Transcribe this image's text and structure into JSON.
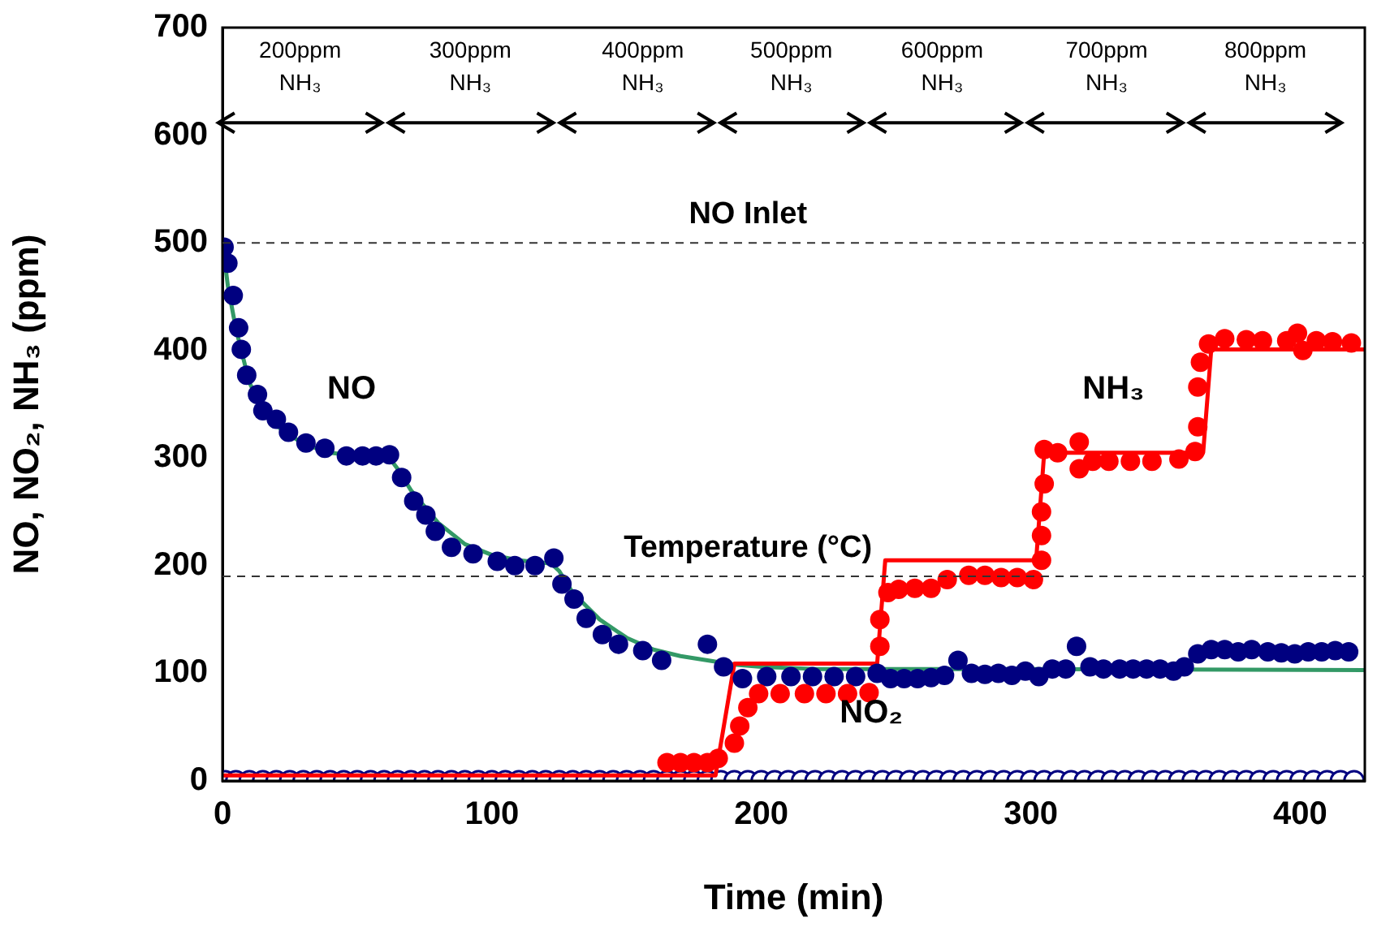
{
  "chart_data": {
    "type": "scatter",
    "xlabel": "Time (min)",
    "ylabel": "NO, NO₂, NH₃ (ppm)",
    "xlim": [
      0,
      424
    ],
    "xticks": [
      0,
      100,
      200,
      300,
      400
    ],
    "ylim": [
      0,
      700
    ],
    "yticks": [
      0,
      100,
      200,
      300,
      400,
      500,
      600,
      700
    ],
    "grid": false,
    "legend": false,
    "series": [
      {
        "type": "scatter",
        "color": "#000080",
        "marker": "circle",
        "x": [
          1,
          5,
          10,
          15,
          20,
          25,
          30,
          35,
          40,
          45,
          50,
          55,
          60,
          65,
          70,
          75,
          80,
          85,
          90,
          95,
          100,
          105,
          110,
          115,
          120,
          125,
          130,
          135,
          140,
          145,
          150,
          155,
          160,
          165,
          170,
          175,
          180,
          185,
          190,
          195,
          200,
          205,
          210,
          215,
          220,
          225,
          230,
          235,
          240,
          245,
          250,
          255,
          260,
          265,
          270,
          275,
          280,
          285,
          290,
          295,
          300,
          305,
          310,
          315,
          320,
          325,
          330,
          335,
          340,
          345,
          350,
          355,
          360,
          365,
          370,
          375,
          380,
          385,
          390,
          395,
          400,
          405,
          410,
          415,
          420
        ],
        "values": [
          0,
          0,
          0,
          0,
          0,
          0,
          0,
          0,
          0,
          0,
          0,
          0,
          0,
          0,
          0,
          0,
          0,
          0,
          0,
          0,
          0,
          0,
          0,
          0,
          0,
          0,
          0,
          0,
          0,
          0,
          0,
          0,
          0,
          0,
          0,
          0,
          0,
          0,
          0,
          0,
          0,
          0,
          0,
          0,
          0,
          0,
          0,
          0,
          0,
          0,
          0,
          0,
          0,
          0,
          0,
          0,
          0,
          0,
          0,
          0,
          0,
          0,
          0,
          0,
          0,
          0,
          0,
          0,
          0,
          0,
          0,
          0,
          0,
          0,
          0,
          0,
          0,
          0,
          0,
          0,
          0,
          0,
          0,
          0,
          0
        ]
      },
      {
        "type": "line",
        "color": "#339966",
        "marker": "none",
        "x": [
          0,
          2,
          5,
          10,
          15,
          20,
          30,
          40,
          50,
          60,
          62,
          65,
          70,
          80,
          90,
          100,
          110,
          122,
          125,
          130,
          140,
          150,
          160,
          170,
          180,
          190,
          200,
          220,
          300,
          424
        ],
        "values": [
          500,
          460,
          420,
          370,
          345,
          330,
          313,
          305,
          302,
          300,
          300,
          290,
          270,
          240,
          220,
          210,
          205,
          202,
          195,
          175,
          150,
          133,
          122,
          116,
          112,
          108,
          106,
          104,
          104,
          103
        ]
      },
      {
        "type": "line",
        "color": "#ff0000",
        "marker": "none",
        "x": [
          0,
          183,
          190,
          243,
          246,
          302,
          305,
          364,
          367,
          424
        ],
        "values": [
          5,
          5,
          109,
          109,
          205,
          205,
          305,
          305,
          401,
          401
        ]
      },
      {
        "type": "scatter",
        "color": "#000080",
        "marker": "circle",
        "x": [
          0.6,
          2,
          4,
          6,
          7,
          9,
          13,
          15,
          20,
          24.5,
          31,
          38,
          46,
          52,
          57,
          62,
          66.5,
          71,
          75.5,
          79,
          85,
          93,
          102,
          108.5,
          116,
          123,
          126,
          130.5,
          135,
          141,
          147,
          156,
          163,
          180,
          186,
          193,
          202,
          211,
          219,
          227,
          235,
          243,
          248,
          253,
          258,
          263,
          268,
          273,
          278,
          283,
          288,
          293,
          298,
          303,
          308,
          313,
          317,
          322,
          327,
          333,
          338,
          343,
          348,
          353,
          357,
          362,
          367,
          372,
          377,
          382,
          388,
          393,
          398,
          403,
          408,
          413,
          418
        ],
        "values": [
          496,
          481,
          451,
          421,
          401,
          377,
          359,
          344,
          336,
          324,
          314,
          309,
          302,
          302,
          302,
          303,
          282,
          260,
          247,
          232,
          217,
          211,
          204,
          200,
          200,
          207,
          183,
          169,
          151,
          136,
          127,
          121,
          112,
          127,
          106,
          95,
          97,
          97,
          97,
          97,
          97,
          100,
          95,
          95,
          95,
          96,
          98,
          112,
          100,
          99,
          100,
          98,
          102,
          97,
          104,
          104,
          125,
          106,
          104,
          104,
          104,
          104,
          104,
          102,
          106,
          118,
          122,
          122,
          120,
          122,
          120,
          119,
          118,
          120,
          120,
          121,
          120
        ]
      },
      {
        "type": "scatter",
        "color": "#ff0000",
        "marker": "circle",
        "x": [
          165,
          170,
          175,
          180,
          184,
          190,
          192,
          195,
          199,
          207,
          216,
          224,
          232,
          240,
          244,
          244,
          247,
          251,
          257,
          263,
          269,
          277,
          283,
          289,
          295,
          301,
          304,
          304,
          304,
          305,
          305,
          310,
          318,
          318,
          323,
          329,
          337,
          345,
          355,
          361,
          362,
          362,
          363,
          366,
          372,
          380,
          386,
          395,
          399,
          401,
          406,
          412,
          419
        ],
        "values": [
          17,
          17,
          17,
          17,
          21,
          35,
          51,
          68,
          81,
          81,
          81,
          81,
          81,
          82,
          125,
          150,
          175,
          178,
          179,
          179,
          187,
          191,
          191,
          189,
          189,
          187,
          205,
          228,
          250,
          276,
          308,
          305,
          315,
          290,
          297,
          297,
          297,
          297,
          299,
          306,
          329,
          366,
          389,
          406,
          411,
          410,
          409,
          409,
          416,
          400,
          409,
          408,
          407
        ]
      }
    ],
    "ref_lines": [
      {
        "axis": "y",
        "value": 500,
        "label": "NO Inlet",
        "line_style": "dashed"
      },
      {
        "axis": "y",
        "value": 190,
        "label": "Temperature (°C)",
        "line_style": "dashed"
      }
    ],
    "annotations": [
      "NO",
      "NH₃",
      "NO₂",
      "200ppm NH₃",
      "300ppm NH₃",
      "400ppm NH₃",
      "500ppm NH₃",
      "600ppm NH₃",
      "700ppm NH₃",
      "800ppm NH₃"
    ]
  }
}
